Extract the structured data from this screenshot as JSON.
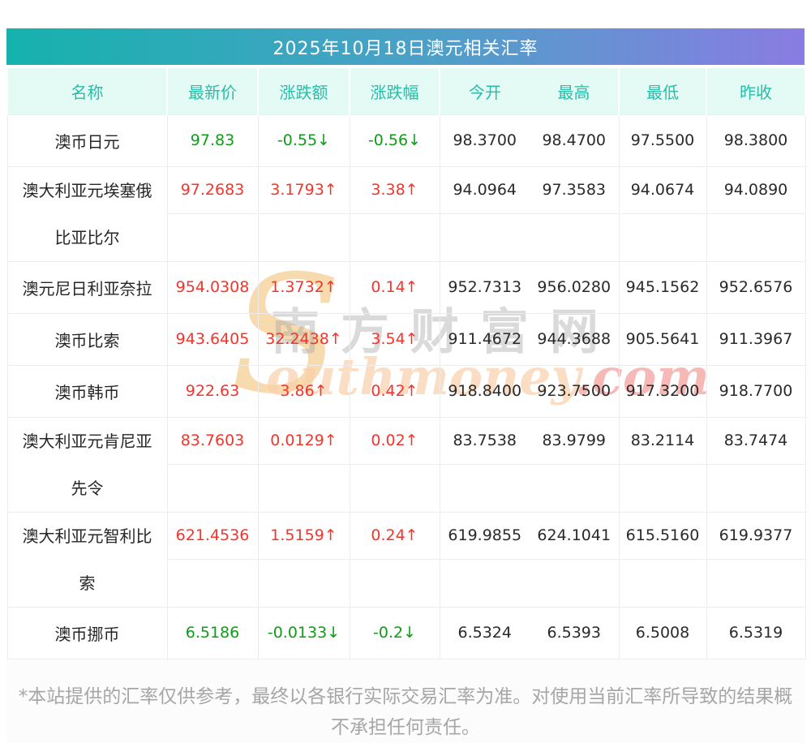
{
  "title": "2025年10月18日澳元相关汇率",
  "colors": {
    "title_gradient_left": "#15b2ad",
    "title_gradient_right": "#897ce2",
    "header_text": "#2bbca7",
    "header_bg": "#e4faf5",
    "up_red": "#f5352b",
    "down_green": "#0d9e16"
  },
  "table": {
    "headers": [
      "名称",
      "最新价",
      "涨跌额",
      "涨跌幅",
      "今开",
      "最高",
      "最低",
      "昨收"
    ],
    "rows": [
      {
        "name_lines": [
          "澳币日元"
        ],
        "trend": "down",
        "latest": "97.83",
        "change": "-0.55↓",
        "pct": "-0.56↓",
        "open": "98.3700",
        "high": "98.4700",
        "low": "97.5500",
        "prev": "98.3800"
      },
      {
        "name_lines": [
          "澳大利亚元埃塞俄",
          "比亚比尔"
        ],
        "trend": "up",
        "latest": "97.2683",
        "change": "3.1793↑",
        "pct": "3.38↑",
        "open": "94.0964",
        "high": "97.3583",
        "low": "94.0674",
        "prev": "94.0890"
      },
      {
        "name_lines": [
          "澳元尼日利亚奈拉"
        ],
        "trend": "up",
        "latest": "954.0308",
        "change": "1.3732↑",
        "pct": "0.14↑",
        "open": "952.7313",
        "high": "956.0280",
        "low": "945.1562",
        "prev": "952.6576"
      },
      {
        "name_lines": [
          "澳币比索"
        ],
        "trend": "up",
        "latest": "943.6405",
        "change": "32.2438↑",
        "pct": "3.54↑",
        "open": "911.4672",
        "high": "944.3688",
        "low": "905.5641",
        "prev": "911.3967"
      },
      {
        "name_lines": [
          "澳币韩币"
        ],
        "trend": "up",
        "latest": "922.63",
        "change": "3.86↑",
        "pct": "0.42↑",
        "open": "918.8400",
        "high": "923.7500",
        "low": "917.3200",
        "prev": "918.7700"
      },
      {
        "name_lines": [
          "澳大利亚元肯尼亚",
          "先令"
        ],
        "trend": "up",
        "latest": "83.7603",
        "change": "0.0129↑",
        "pct": "0.02↑",
        "open": "83.7538",
        "high": "83.9799",
        "low": "83.2114",
        "prev": "83.7474"
      },
      {
        "name_lines": [
          "澳大利亚元智利比",
          "索"
        ],
        "trend": "up",
        "latest": "621.4536",
        "change": "1.5159↑",
        "pct": "0.24↑",
        "open": "619.9855",
        "high": "624.1041",
        "low": "615.5160",
        "prev": "619.9377"
      },
      {
        "name_lines": [
          "澳币挪币"
        ],
        "trend": "down",
        "latest": "6.5186",
        "change": "-0.0133↓",
        "pct": "-0.2↓",
        "open": "6.5324",
        "high": "6.5393",
        "low": "6.5008",
        "prev": "6.5319"
      }
    ]
  },
  "watermark": {
    "s": "S",
    "cn": "南方财富网",
    "en": "outhmoney",
    "tld": ".com"
  },
  "footer": "*本站提供的汇率仅供参考，最终以各银行实际交易汇率为准。对使用当前汇率所导致的结果概不承担任何责任。"
}
